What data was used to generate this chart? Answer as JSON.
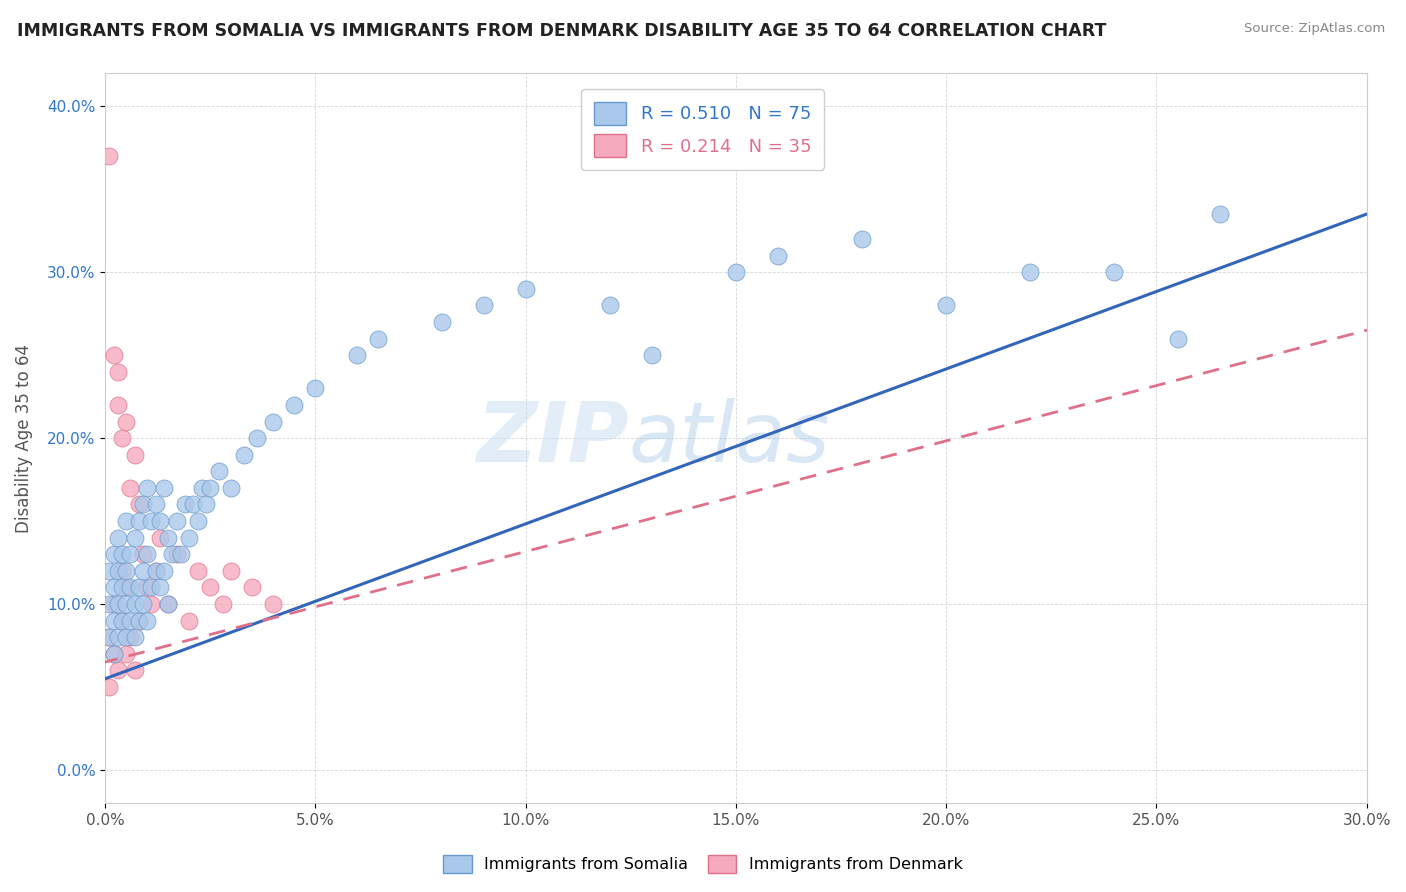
{
  "title": "IMMIGRANTS FROM SOMALIA VS IMMIGRANTS FROM DENMARK DISABILITY AGE 35 TO 64 CORRELATION CHART",
  "source": "Source: ZipAtlas.com",
  "ylabel": "Disability Age 35 to 64",
  "xlim": [
    0.0,
    0.3
  ],
  "ylim": [
    -0.02,
    0.42
  ],
  "xticks": [
    0.0,
    0.05,
    0.1,
    0.15,
    0.2,
    0.25,
    0.3
  ],
  "yticks": [
    0.0,
    0.1,
    0.2,
    0.3,
    0.4
  ],
  "somalia_color": "#aac8ea",
  "denmark_color": "#f5aabe",
  "somalia_edge": "#6699cc",
  "denmark_edge": "#e0708a",
  "trend_somalia_color": "#3366bb",
  "trend_denmark_color": "#e0708a",
  "R_somalia": 0.51,
  "N_somalia": 75,
  "R_denmark": 0.214,
  "N_denmark": 35,
  "watermark_zip": "ZIP",
  "watermark_atlas": "atlas",
  "trend_som_x0": 0.0,
  "trend_som_y0": 0.055,
  "trend_som_x1": 0.3,
  "trend_som_y1": 0.335,
  "trend_den_x0": 0.0,
  "trend_den_y0": 0.065,
  "trend_den_x1": 0.3,
  "trend_den_y1": 0.265
}
